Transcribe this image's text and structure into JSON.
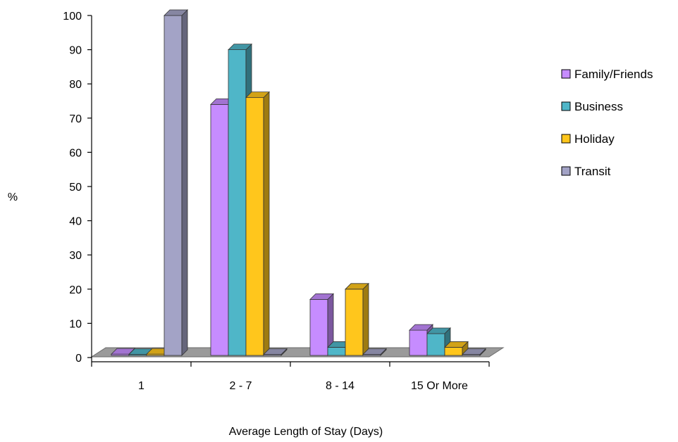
{
  "chart_data": {
    "type": "bar",
    "title": "",
    "xlabel": "Average Length of Stay (Days)",
    "ylabel": "%",
    "ylim": [
      0,
      100
    ],
    "yticks": [
      0,
      10,
      20,
      30,
      40,
      50,
      60,
      70,
      80,
      90,
      100
    ],
    "categories": [
      "1",
      "2 - 7",
      "8 - 14",
      "15 Or More"
    ],
    "series": [
      {
        "name": "Family/Friends",
        "values": [
          1,
          74,
          17,
          8
        ],
        "color": "#c68cff"
      },
      {
        "name": "Business",
        "values": [
          0,
          90,
          3,
          7
        ],
        "color": "#4fb6c8"
      },
      {
        "name": "Holiday",
        "values": [
          1,
          76,
          20,
          3
        ],
        "color": "#ffc61c"
      },
      {
        "name": "Transit",
        "values": [
          100,
          0,
          0,
          0
        ],
        "color": "#a3a3c6"
      }
    ],
    "legend": "right",
    "grid": false,
    "style": "3d-clustered-column"
  }
}
